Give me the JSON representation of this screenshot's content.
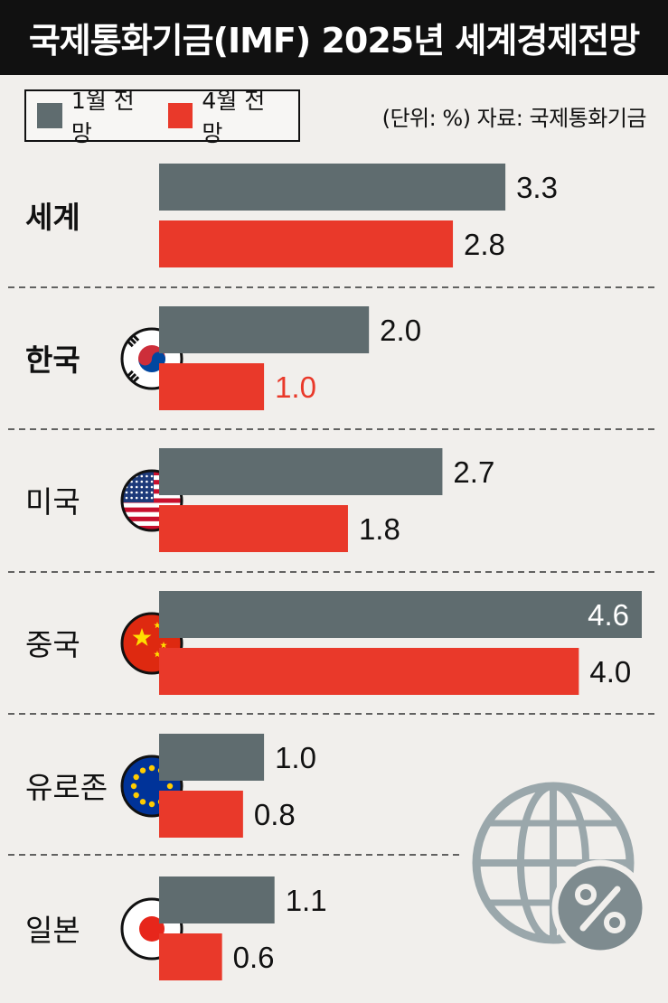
{
  "title": "국제통화기금(IMF) 2025년 세계경제전망",
  "source_note": "(단위: %) 자료: 국제통화기금",
  "colors": {
    "january": "#5f6c6f",
    "april": "#e9392a",
    "highlight_text": "#e9392a",
    "divider": "#333333",
    "globe": "#9aa7ab",
    "percent_badge": "#7e8b8f"
  },
  "chart_data": {
    "type": "bar",
    "orientation": "horizontal",
    "unit": "%",
    "categories": [
      "세계",
      "한국",
      "미국",
      "중국",
      "유로존",
      "일본"
    ],
    "series": [
      {
        "name": "1월 전망",
        "values": [
          3.3,
          2.0,
          2.7,
          4.6,
          1.0,
          1.1
        ]
      },
      {
        "name": "4월 전망",
        "values": [
          2.8,
          1.0,
          1.8,
          4.0,
          0.8,
          0.6
        ]
      }
    ],
    "value_labels": [
      [
        "3.3",
        "2.0",
        "2.7",
        "4.6",
        "1.0",
        "1.1"
      ],
      [
        "2.8",
        "1.0",
        "1.8",
        "4.0",
        "0.8",
        "0.6"
      ]
    ],
    "bold_categories": [
      "세계",
      "한국"
    ],
    "highlighted_value": {
      "category": "한국",
      "series": "4월 전망"
    },
    "legend_position": "top-left",
    "flag_icons": [
      null,
      "korea-flag-icon",
      "usa-flag-icon",
      "china-flag-icon",
      "eu-flag-icon",
      "japan-flag-icon"
    ],
    "decoration_icon": "globe-percent-icon",
    "grid": false
  }
}
